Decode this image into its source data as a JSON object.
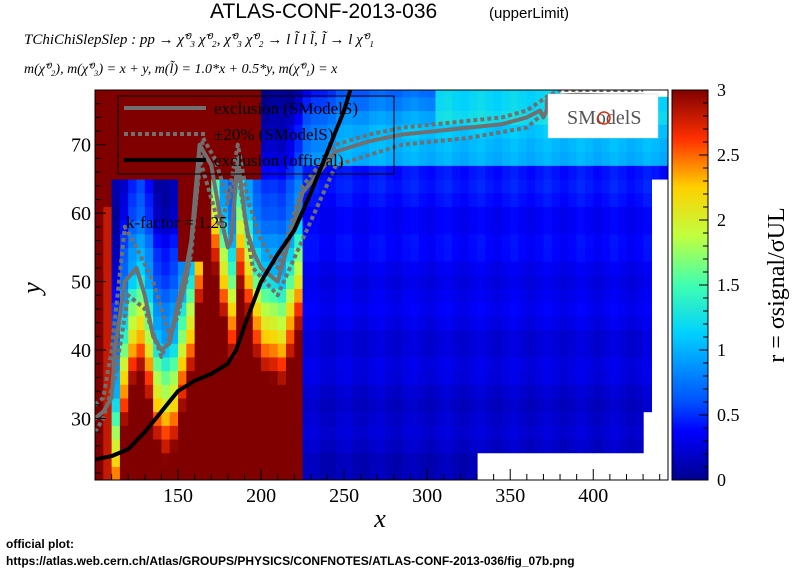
{
  "header": {
    "title": "ATLAS-CONF-2013-036",
    "subtitle": "(upperLimit)",
    "process": "TChiChiSlepSlep : pp → χ̃⁰₃ χ̃⁰₂, χ̃⁰₃ χ̃⁰₂ → l l̃ l l̃, l̃ → l χ̃⁰₁",
    "masses": "m(χ̃⁰₂), m(χ̃⁰₃) = x + y, m(l̃) = 1.0*x + 0.5*y, m(χ̃⁰₁) = x"
  },
  "footer": {
    "label": "official plot:",
    "url": "https://atlas.web.cern.ch/Atlas/GROUPS/PHYSICS/CONFNOTES/ATLAS-CONF-2013-036/fig_07b.png"
  },
  "annotation": "k-factor = 1.25",
  "logo_text": "SModelS",
  "chart_data": {
    "type": "heatmap",
    "xlabel": "x",
    "ylabel": "y",
    "zlabel": "r = σsignal/σUL",
    "xlim": [
      100,
      445
    ],
    "ylim": [
      21,
      78
    ],
    "zlim": [
      0,
      3
    ],
    "xticks": [
      150,
      200,
      250,
      300,
      350,
      400
    ],
    "yticks": [
      30,
      40,
      50,
      60,
      70
    ],
    "zticks": [
      0,
      0.5,
      1,
      1.5,
      2,
      2.5,
      3
    ],
    "xtick_labels": [
      "150",
      "200",
      "250",
      "300",
      "350",
      "400"
    ],
    "ytick_labels": [
      "30",
      "40",
      "50",
      "60",
      "70"
    ],
    "ztick_labels": [
      "0",
      "0.5",
      "1",
      "1.5",
      "2",
      "2.5",
      "3"
    ],
    "grid": false,
    "legend_position": "top-left",
    "colors": {
      "smodels_exclusion": "#707070",
      "official_exclusion": "#000000"
    },
    "series": [
      {
        "name": "exclusion (SModelS)",
        "style": "solid-gray",
        "x": [
          100,
          105,
          110,
          112,
          118,
          125,
          130,
          135,
          140,
          145,
          150,
          155,
          158,
          160,
          163,
          170,
          175,
          180,
          182,
          186,
          190,
          192,
          196,
          200,
          210,
          225,
          245,
          265,
          285,
          305,
          325,
          345,
          360,
          368,
          370,
          372,
          372,
          375,
          380,
          390,
          410,
          430
        ],
        "y": [
          30,
          31,
          33,
          40,
          50,
          52,
          48,
          42,
          40,
          41,
          47,
          52,
          56,
          62,
          70,
          67,
          60,
          55,
          56,
          68,
          60,
          57,
          54,
          52,
          50,
          63,
          69,
          70.5,
          71.5,
          72,
          72.5,
          73,
          74,
          75,
          74,
          75,
          76.5,
          77,
          77.2,
          77.3,
          77.2,
          77.2
        ]
      },
      {
        "name": "±20% (SModelS)",
        "style": "dotted-gray",
        "x": [
          100,
          105,
          112,
          120,
          130,
          140,
          150,
          158,
          163,
          175,
          186,
          195,
          210,
          245,
          285,
          325,
          360,
          372,
          380,
          430
        ],
        "y": [
          28,
          30,
          36,
          48,
          46,
          39,
          45,
          54,
          68,
          58,
          66,
          52,
          48,
          67,
          70,
          71,
          72.5,
          75,
          76.5,
          76.5
        ]
      },
      {
        "name": "±20% (SModelS)",
        "style": "dotted-gray",
        "x": [
          100,
          105,
          110,
          118,
          125,
          135,
          145,
          150,
          155,
          160,
          165,
          172,
          180,
          186,
          192,
          200,
          210,
          225,
          245,
          265,
          285,
          305,
          325,
          345,
          360,
          372,
          380,
          430
        ],
        "y": [
          32,
          33,
          40,
          58,
          55,
          50,
          42,
          46,
          50,
          60,
          71,
          68,
          62,
          70,
          62,
          56,
          52,
          64,
          70,
          71.5,
          72.5,
          73,
          73.5,
          74,
          75,
          77,
          78,
          78
        ]
      },
      {
        "name": "exclusion (official)",
        "style": "solid-black",
        "x": [
          100,
          110,
          120,
          130,
          140,
          145,
          150,
          160,
          170,
          180,
          185,
          190,
          200,
          205,
          210,
          220,
          230,
          240,
          245,
          250,
          255,
          260
        ],
        "y": [
          24,
          24.5,
          25.5,
          28,
          31,
          32.5,
          34,
          35.5,
          36.5,
          38,
          40,
          43.5,
          50,
          52,
          54,
          57.5,
          63,
          69,
          72,
          75,
          79,
          82
        ]
      }
    ],
    "heat_regions": {
      "high_value_region": "left strip x<110 and upper-left corner x<200, y>62",
      "band": "yellow-green band along SModelS exclusion line",
      "low_value_region": "bulk of plane at x>250 with r≈0.1-0.4",
      "empty": "no data at x>440, y<30 for x>325, and white corner upper-right"
    }
  }
}
